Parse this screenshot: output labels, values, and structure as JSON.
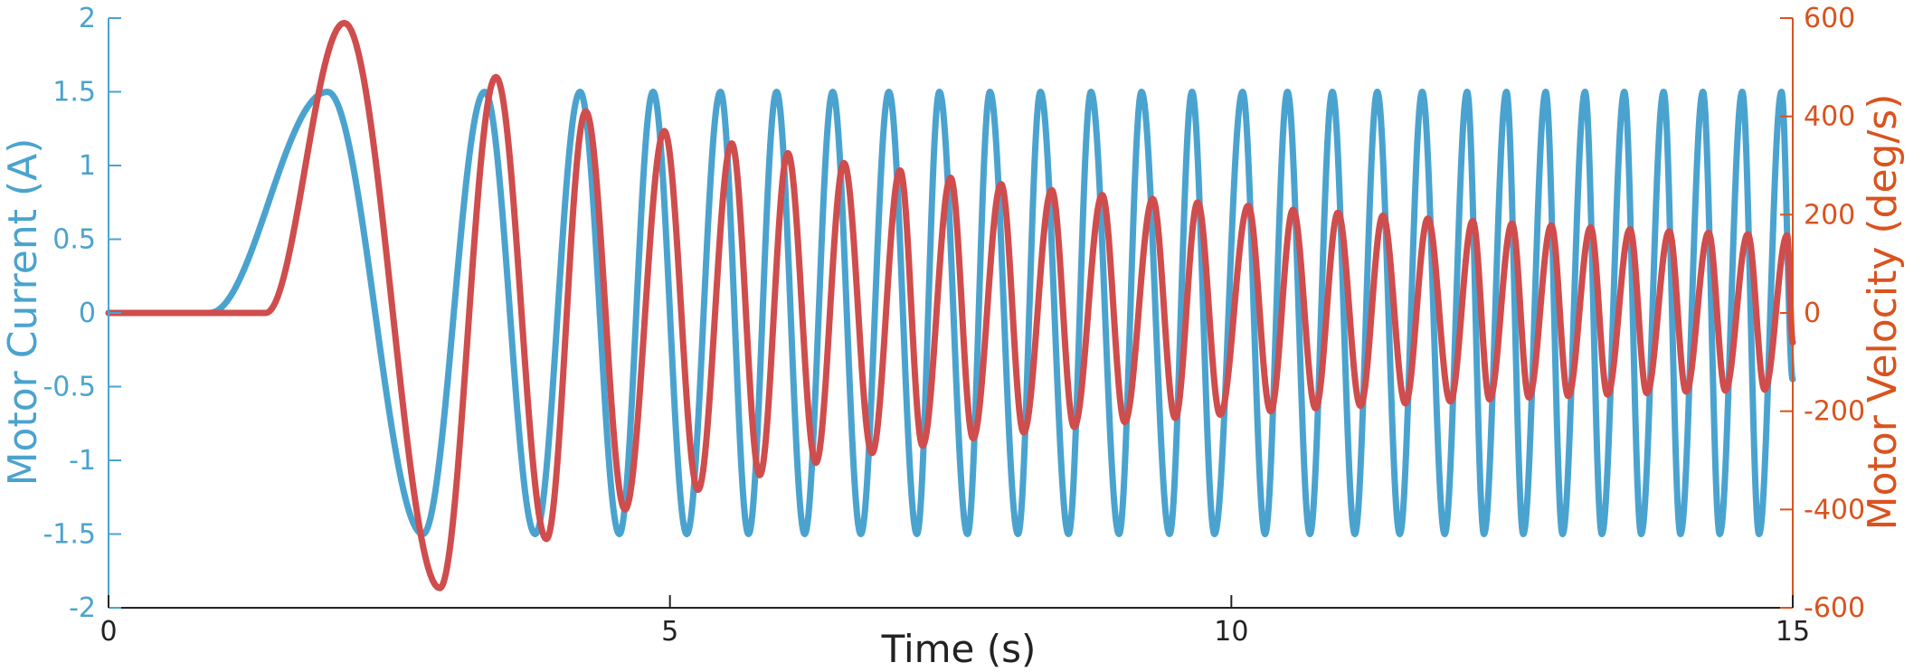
{
  "chart_data": {
    "type": "line",
    "title": "",
    "xlabel": "Time (s)",
    "ylabel_left": "Motor Current (A)",
    "ylabel_right": "Motor Velocity (deg/s)",
    "xlim": [
      0,
      15
    ],
    "ylim_left": [
      -2,
      2
    ],
    "ylim_right": [
      -600,
      600
    ],
    "x_ticks": [
      "0",
      "5",
      "10",
      "15"
    ],
    "y_left_ticks": [
      "2",
      "1.5",
      "1",
      "0.5",
      "0",
      "-0.5",
      "-1",
      "-1.5",
      "-2"
    ],
    "y_right_ticks": [
      "600",
      "400",
      "200",
      "0",
      "-200",
      "-400",
      "-600"
    ],
    "grid": false,
    "legend": "none",
    "colors": {
      "current": "#4aa3cf",
      "velocity": "#cf4d4d",
      "left_axis": "#4aa3cf",
      "right_axis": "#d9531e",
      "x_axis": "#222222"
    },
    "series": [
      {
        "axis": "left",
        "peak_times": [
          1.95,
          3.35,
          4.2,
          4.85,
          5.45,
          5.95,
          6.45,
          6.95,
          7.4,
          7.85,
          8.3,
          8.75,
          9.2,
          9.65,
          10.1,
          10.5,
          10.9,
          11.3,
          11.7,
          12.1,
          12.45,
          12.8,
          13.15,
          13.5,
          13.85,
          14.2,
          14.55,
          14.9
        ],
        "trough_times": [
          2.8,
          3.8,
          4.55,
          5.15,
          5.7,
          6.2,
          6.7,
          7.2,
          7.65,
          8.1,
          8.55,
          9.0,
          9.45,
          9.85,
          10.3,
          10.7,
          11.1,
          11.5,
          11.9,
          12.25,
          12.6,
          12.95,
          13.3,
          13.65,
          14.0,
          14.35,
          14.7
        ],
        "onset_time": 0.9,
        "amplitude": 1.5
      },
      {
        "axis": "right",
        "start_time": 1.4,
        "peak_times": [
          2.1,
          3.45,
          4.25,
          4.95,
          5.55,
          6.05,
          6.55,
          7.05,
          7.5,
          7.95,
          8.4,
          8.85,
          9.3,
          9.7,
          10.15,
          10.55,
          10.95,
          11.35,
          11.75,
          12.15,
          12.5,
          12.85,
          13.2,
          13.55,
          13.9,
          14.25,
          14.6,
          14.95
        ],
        "peak_values": [
          590,
          480,
          410,
          370,
          345,
          325,
          305,
          290,
          275,
          262,
          250,
          240,
          232,
          225,
          218,
          210,
          204,
          198,
          192,
          187,
          182,
          178,
          174,
          170,
          166,
          163,
          160,
          158
        ],
        "trough_times": [
          2.95,
          3.9,
          4.6,
          5.25,
          5.8,
          6.3,
          6.8,
          7.25,
          7.7,
          8.15,
          8.6,
          9.05,
          9.5,
          9.9,
          10.35,
          10.75,
          11.15,
          11.55,
          11.95,
          12.3,
          12.65,
          13.0,
          13.35,
          13.7,
          14.05,
          14.4,
          14.75
        ],
        "trough_values": [
          -560,
          -460,
          -400,
          -360,
          -330,
          -305,
          -285,
          -270,
          -255,
          -243,
          -232,
          -222,
          -214,
          -207,
          -200,
          -194,
          -189,
          -184,
          -180,
          -176,
          -172,
          -169,
          -166,
          -163,
          -160,
          -158,
          -156
        ]
      }
    ]
  }
}
